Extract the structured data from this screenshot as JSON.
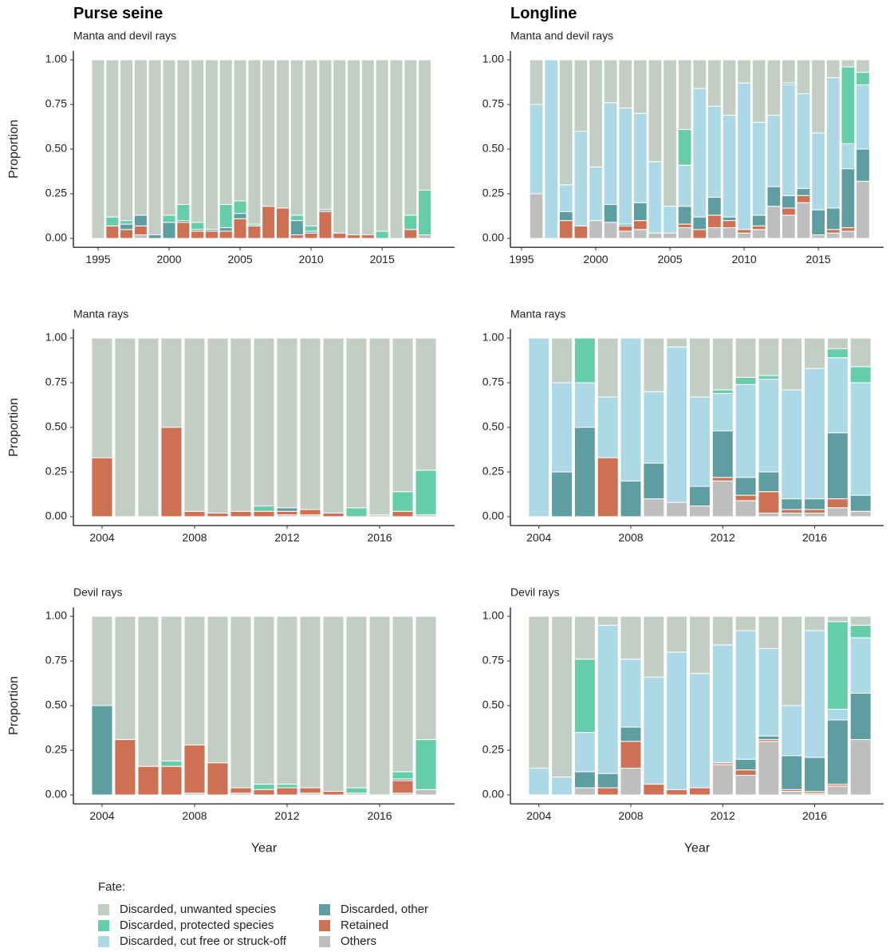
{
  "legend": {
    "title": "Fate:",
    "series": [
      {
        "name": "Discarded, unwanted species",
        "color": "#c2cec3"
      },
      {
        "name": "Discarded, protected species",
        "color": "#66cdaa"
      },
      {
        "name": "Discarded, cut free or struck-off",
        "color": "#add8e6"
      },
      {
        "name": "Discarded, other",
        "color": "#5f9ea0"
      },
      {
        "name": "Retained",
        "color": "#cd7054"
      },
      {
        "name": "Others",
        "color": "#bebebe"
      }
    ]
  },
  "chart_data": [
    {
      "type": "bar",
      "stacked": true,
      "title": "Purse seine",
      "subtitle": "Manta and devil rays",
      "ylabel": "Proportion",
      "x": [
        1995,
        1996,
        1997,
        1998,
        1999,
        2000,
        2001,
        2002,
        2003,
        2004,
        2005,
        2006,
        2007,
        2008,
        2009,
        2010,
        2011,
        2012,
        2013,
        2014,
        2015,
        2016,
        2017,
        2018
      ],
      "xlim": [
        1993.26,
        2020.1
      ],
      "xticks": [
        1995,
        2000,
        2005,
        2010,
        2015
      ],
      "ylim": [
        -0.05,
        1.05
      ],
      "yticks": [
        {
          "value": 0,
          "label": "0.00"
        },
        {
          "value": 0.25,
          "label": "0.25"
        },
        {
          "value": 0.5,
          "label": "0.50"
        },
        {
          "value": 0.75,
          "label": "0.75"
        },
        {
          "value": 1,
          "label": "1.00"
        }
      ],
      "series": [
        {
          "values": [
            1,
            0.88,
            0.9,
            0.87,
            0.98,
            0.87,
            0.81,
            0.91,
            0.95,
            0.81,
            0.79,
            0.92,
            0.82,
            0.83,
            0.87,
            0.93,
            0.84,
            0.97,
            0.98,
            0.98,
            0.96,
            1,
            0.87,
            0.73
          ]
        },
        {
          "values": [
            0,
            0.05,
            0.02,
            0,
            0,
            0.04,
            0.09,
            0.04,
            0,
            0.13,
            0.07,
            0.01,
            0,
            0,
            0.03,
            0.03,
            0,
            0,
            0,
            0,
            0.04,
            0,
            0.08,
            0.25
          ]
        },
        {
          "values": [
            0,
            0,
            0,
            0,
            0,
            0,
            0,
            0,
            0,
            0,
            0,
            0,
            0,
            0,
            0,
            0,
            0,
            0,
            0,
            0,
            0,
            0,
            0,
            0
          ]
        },
        {
          "values": [
            0,
            0,
            0.03,
            0.06,
            0.02,
            0.09,
            0.01,
            0.01,
            0.01,
            0.02,
            0.03,
            0,
            0,
            0,
            0.08,
            0.01,
            0.01,
            0,
            0,
            0,
            0,
            0,
            0,
            0
          ]
        },
        {
          "values": [
            0,
            0.07,
            0.05,
            0.05,
            0,
            0,
            0.09,
            0.04,
            0.04,
            0.04,
            0.11,
            0.07,
            0.18,
            0.17,
            0.02,
            0.03,
            0.15,
            0.03,
            0.02,
            0.02,
            0,
            0,
            0.05,
            0
          ]
        },
        {
          "values": [
            0,
            0,
            0,
            0.02,
            0,
            0,
            0,
            0,
            0,
            0,
            0,
            0,
            0,
            0,
            0,
            0,
            0,
            0,
            0,
            0,
            0,
            0,
            0,
            0.02
          ]
        }
      ]
    },
    {
      "type": "bar",
      "stacked": true,
      "title": "Longline",
      "subtitle": "Manta and devil rays",
      "x": [
        1996,
        1997,
        1998,
        1999,
        2000,
        2001,
        2002,
        2003,
        2004,
        2005,
        2006,
        2007,
        2008,
        2009,
        2010,
        2011,
        2012,
        2013,
        2014,
        2015,
        2016,
        2017,
        2018
      ],
      "xlim": [
        1994.25,
        2019.4
      ],
      "xticks": [
        1995,
        2000,
        2005,
        2010,
        2015
      ],
      "ylim": [
        -0.05,
        1.05
      ],
      "yticks": [
        {
          "value": 0,
          "label": "0.00"
        },
        {
          "value": 0.25,
          "label": "0.25"
        },
        {
          "value": 0.5,
          "label": "0.50"
        },
        {
          "value": 0.75,
          "label": "0.75"
        },
        {
          "value": 1,
          "label": "1.00"
        }
      ],
      "series": [
        {
          "values": [
            0.25,
            0,
            0.7,
            0.4,
            0.6,
            0.24,
            0.27,
            0.3,
            0.57,
            0.82,
            0.39,
            0.16,
            0.26,
            0.31,
            0.13,
            0.35,
            0.31,
            0.13,
            0.19,
            0.41,
            0.1,
            0.04,
            0.07
          ]
        },
        {
          "values": [
            0,
            0,
            0,
            0,
            0,
            0,
            0,
            0,
            0,
            0,
            0.2,
            0,
            0,
            0,
            0,
            0,
            0,
            0.01,
            0,
            0,
            0,
            0.43,
            0.07
          ]
        },
        {
          "values": [
            0.5,
            1,
            0.15,
            0.53,
            0.3,
            0.57,
            0.65,
            0.5,
            0.4,
            0.15,
            0.23,
            0.72,
            0.51,
            0.57,
            0.82,
            0.52,
            0.4,
            0.62,
            0.53,
            0.43,
            0.73,
            0.14,
            0.36
          ]
        },
        {
          "values": [
            0,
            0,
            0.05,
            0,
            0,
            0.1,
            0.01,
            0.1,
            0,
            0,
            0.1,
            0.07,
            0.1,
            0.02,
            0,
            0.06,
            0.11,
            0.07,
            0.04,
            0.14,
            0.12,
            0.33,
            0.18
          ]
        },
        {
          "values": [
            0,
            0,
            0.1,
            0.07,
            0,
            0,
            0.03,
            0.05,
            0,
            0,
            0.02,
            0.05,
            0.07,
            0.04,
            0.02,
            0.02,
            0,
            0.04,
            0.04,
            0,
            0.02,
            0.02,
            0
          ]
        },
        {
          "values": [
            0.25,
            0,
            0,
            0,
            0.1,
            0.09,
            0.04,
            0.05,
            0.03,
            0.03,
            0.06,
            0,
            0.06,
            0.06,
            0.03,
            0.05,
            0.18,
            0.13,
            0.2,
            0.02,
            0.03,
            0.04,
            0.32
          ]
        }
      ]
    },
    {
      "type": "bar",
      "stacked": true,
      "subtitle": "Manta rays",
      "ylabel": "Proportion",
      "x": [
        2004,
        2005,
        2006,
        2007,
        2008,
        2009,
        2010,
        2011,
        2012,
        2013,
        2014,
        2015,
        2016,
        2017,
        2018
      ],
      "xlim": [
        2002.76,
        2019.24
      ],
      "xticks": [
        2004,
        2008,
        2012,
        2016
      ],
      "ylim": [
        -0.05,
        1.05
      ],
      "yticks": [
        {
          "value": 0,
          "label": "0.00"
        },
        {
          "value": 0.25,
          "label": "0.25"
        },
        {
          "value": 0.5,
          "label": "0.50"
        },
        {
          "value": 0.75,
          "label": "0.75"
        },
        {
          "value": 1,
          "label": "1.00"
        }
      ],
      "series": [
        {
          "values": [
            0.67,
            1,
            1,
            0.5,
            0.97,
            0.98,
            0.97,
            0.94,
            0.95,
            0.96,
            0.98,
            0.95,
            0.99,
            0.86,
            0.74
          ]
        },
        {
          "values": [
            0,
            0,
            0,
            0,
            0,
            0,
            0,
            0.03,
            0,
            0,
            0,
            0.05,
            0,
            0.11,
            0.25
          ]
        },
        {
          "values": [
            0,
            0,
            0,
            0,
            0,
            0,
            0,
            0,
            0,
            0,
            0,
            0,
            0,
            0,
            0
          ]
        },
        {
          "values": [
            0,
            0,
            0,
            0,
            0,
            0,
            0,
            0,
            0.02,
            0,
            0,
            0,
            0,
            0,
            0
          ]
        },
        {
          "values": [
            0.33,
            0,
            0,
            0.5,
            0.03,
            0.02,
            0.03,
            0.03,
            0.02,
            0.03,
            0.02,
            0,
            0,
            0.03,
            0
          ]
        },
        {
          "values": [
            0,
            0,
            0,
            0,
            0,
            0,
            0,
            0,
            0.01,
            0.01,
            0,
            0,
            0.01,
            0,
            0.01
          ]
        }
      ]
    },
    {
      "type": "bar",
      "stacked": true,
      "subtitle": "Manta rays",
      "x": [
        2004,
        2005,
        2006,
        2007,
        2008,
        2009,
        2010,
        2011,
        2012,
        2013,
        2014,
        2015,
        2016,
        2017,
        2018
      ],
      "xlim": [
        2002.76,
        2019.0
      ],
      "xticks": [
        2004,
        2008,
        2012,
        2016
      ],
      "ylim": [
        -0.05,
        1.05
      ],
      "yticks": [
        {
          "value": 0,
          "label": "0.00"
        },
        {
          "value": 0.25,
          "label": "0.25"
        },
        {
          "value": 0.5,
          "label": "0.50"
        },
        {
          "value": 0.75,
          "label": "0.75"
        },
        {
          "value": 1,
          "label": "1.00"
        }
      ],
      "series": [
        {
          "values": [
            0,
            0.25,
            0,
            0.33,
            0,
            0.3,
            0.05,
            0.33,
            0.29,
            0.22,
            0.21,
            0.29,
            0.17,
            0.06,
            0.16
          ]
        },
        {
          "values": [
            0,
            0,
            0.25,
            0,
            0,
            0,
            0,
            0,
            0.02,
            0.04,
            0.02,
            0,
            0,
            0.05,
            0.09
          ]
        },
        {
          "values": [
            1,
            0.5,
            0.25,
            0.34,
            0.8,
            0.4,
            0.87,
            0.5,
            0.21,
            0.52,
            0.52,
            0.61,
            0.73,
            0.42,
            0.63
          ]
        },
        {
          "values": [
            0,
            0.25,
            0.5,
            0,
            0.2,
            0.2,
            0,
            0.11,
            0.26,
            0.1,
            0.11,
            0.06,
            0.06,
            0.37,
            0.09
          ]
        },
        {
          "values": [
            0,
            0,
            0,
            0.33,
            0,
            0,
            0,
            0,
            0.02,
            0.03,
            0.12,
            0.02,
            0.02,
            0.05,
            0
          ]
        },
        {
          "values": [
            0,
            0,
            0,
            0,
            0,
            0.1,
            0.08,
            0.06,
            0.2,
            0.09,
            0.02,
            0.02,
            0.02,
            0.05,
            0.03
          ]
        }
      ]
    },
    {
      "type": "bar",
      "stacked": true,
      "subtitle": "Devil rays",
      "ylabel": "Proportion",
      "xlabel": "Year",
      "x": [
        2004,
        2005,
        2006,
        2007,
        2008,
        2009,
        2010,
        2011,
        2012,
        2013,
        2014,
        2015,
        2016,
        2017,
        2018
      ],
      "xlim": [
        2002.76,
        2019.24
      ],
      "xticks": [
        2004,
        2008,
        2012,
        2016
      ],
      "ylim": [
        -0.05,
        1.05
      ],
      "yticks": [
        {
          "value": 0,
          "label": "0.00"
        },
        {
          "value": 0.25,
          "label": "0.25"
        },
        {
          "value": 0.5,
          "label": "0.50"
        },
        {
          "value": 0.75,
          "label": "0.75"
        },
        {
          "value": 1,
          "label": "1.00"
        }
      ],
      "series": [
        {
          "values": [
            0.5,
            0.69,
            0.84,
            0.81,
            0.72,
            0.82,
            0.96,
            0.94,
            0.94,
            0.96,
            0.98,
            0.96,
            1,
            0.87,
            0.69
          ]
        },
        {
          "values": [
            0,
            0,
            0,
            0.03,
            0,
            0,
            0,
            0.03,
            0.02,
            0,
            0,
            0.03,
            0,
            0.04,
            0.28
          ]
        },
        {
          "values": [
            0,
            0,
            0,
            0,
            0,
            0,
            0,
            0,
            0,
            0,
            0,
            0,
            0,
            0,
            0
          ]
        },
        {
          "values": [
            0.5,
            0,
            0,
            0,
            0,
            0,
            0,
            0,
            0,
            0,
            0,
            0,
            0,
            0.01,
            0
          ]
        },
        {
          "values": [
            0,
            0.31,
            0.16,
            0.16,
            0.27,
            0.18,
            0.03,
            0.03,
            0.04,
            0.03,
            0.02,
            0,
            0,
            0.07,
            0
          ]
        },
        {
          "values": [
            0,
            0,
            0,
            0,
            0.01,
            0,
            0.01,
            0,
            0,
            0.01,
            0,
            0.01,
            0,
            0.01,
            0.03
          ]
        }
      ]
    },
    {
      "type": "bar",
      "stacked": true,
      "subtitle": "Devil rays",
      "xlabel": "Year",
      "x": [
        2004,
        2005,
        2006,
        2007,
        2008,
        2009,
        2010,
        2011,
        2012,
        2013,
        2014,
        2015,
        2016,
        2017,
        2018
      ],
      "xlim": [
        2002.76,
        2019.0
      ],
      "xticks": [
        2004,
        2008,
        2012,
        2016
      ],
      "ylim": [
        -0.05,
        1.05
      ],
      "yticks": [
        {
          "value": 0,
          "label": "0.00"
        },
        {
          "value": 0.25,
          "label": "0.25"
        },
        {
          "value": 0.5,
          "label": "0.50"
        },
        {
          "value": 0.75,
          "label": "0.75"
        },
        {
          "value": 1,
          "label": "1.00"
        }
      ],
      "series": [
        {
          "values": [
            0.85,
            0.9,
            0.24,
            0.05,
            0.24,
            0.34,
            0.2,
            0.32,
            0.16,
            0.08,
            0.18,
            0.5,
            0.08,
            0.03,
            0.05
          ]
        },
        {
          "values": [
            0,
            0,
            0.41,
            0,
            0,
            0,
            0,
            0,
            0,
            0,
            0,
            0,
            0,
            0.49,
            0.07
          ]
        },
        {
          "values": [
            0.15,
            0.1,
            0.22,
            0.83,
            0.38,
            0.6,
            0.77,
            0.64,
            0.66,
            0.72,
            0.49,
            0.28,
            0.71,
            0.06,
            0.31
          ]
        },
        {
          "values": [
            0,
            0,
            0.09,
            0.08,
            0.08,
            0,
            0,
            0,
            0,
            0.06,
            0.02,
            0.19,
            0.19,
            0.36,
            0.26
          ]
        },
        {
          "values": [
            0,
            0,
            0,
            0.04,
            0.15,
            0.06,
            0.03,
            0.04,
            0.01,
            0.03,
            0.01,
            0.01,
            0.01,
            0.01,
            0
          ]
        },
        {
          "values": [
            0,
            0,
            0.04,
            0,
            0.15,
            0,
            0,
            0,
            0.17,
            0.11,
            0.3,
            0.02,
            0.01,
            0.05,
            0.31
          ]
        }
      ]
    }
  ]
}
